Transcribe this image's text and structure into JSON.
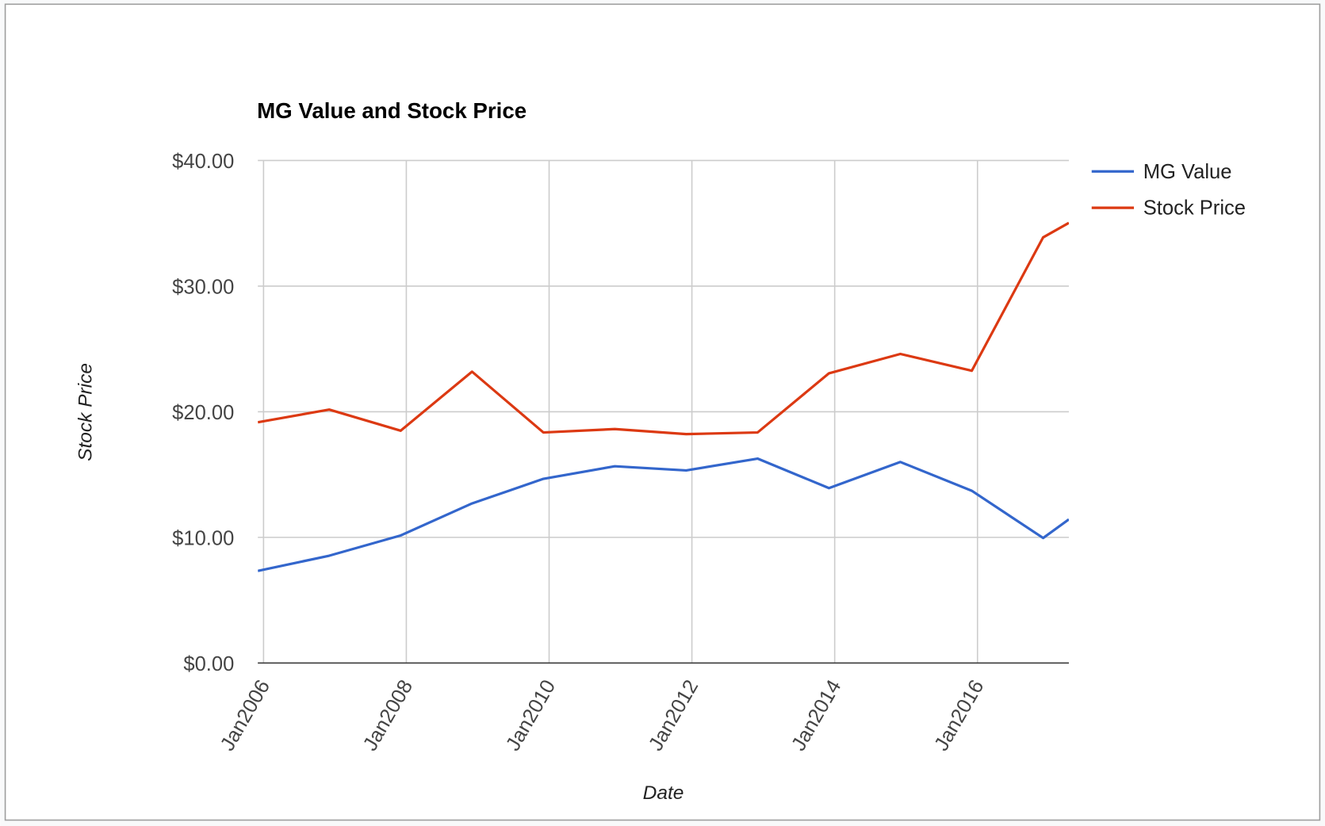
{
  "chart_data": {
    "type": "line",
    "title": "MG Value and Stock Price",
    "xlabel": "Date",
    "ylabel": "Stock Price",
    "x": [
      2005.92,
      2006.92,
      2007.92,
      2008.92,
      2009.92,
      2010.92,
      2011.92,
      2012.92,
      2013.92,
      2014.92,
      2015.92,
      2016.92,
      2017.28
    ],
    "series": [
      {
        "name": "MG Value",
        "color": "#3366cc",
        "values": [
          7.33,
          8.54,
          10.15,
          12.7,
          14.66,
          15.66,
          15.33,
          16.27,
          13.92,
          16.0,
          13.71,
          9.95,
          11.43
        ]
      },
      {
        "name": "Stock Price",
        "color": "#dc3912",
        "values": [
          19.16,
          20.17,
          18.49,
          23.19,
          18.35,
          18.62,
          18.22,
          18.35,
          23.06,
          24.6,
          23.26,
          33.88,
          35.03
        ]
      }
    ],
    "xlim": [
      2005.92,
      2017.28
    ],
    "xticks": [
      {
        "value": 2006,
        "label": "Jan2006"
      },
      {
        "value": 2008,
        "label": "Jan2008"
      },
      {
        "value": 2010,
        "label": "Jan2010"
      },
      {
        "value": 2012,
        "label": "Jan2012"
      },
      {
        "value": 2014,
        "label": "Jan2014"
      },
      {
        "value": 2016,
        "label": "Jan2016"
      }
    ],
    "ylim": [
      0,
      40
    ],
    "yticks": [
      {
        "value": 0,
        "label": "$0.00"
      },
      {
        "value": 10,
        "label": "$10.00"
      },
      {
        "value": 20,
        "label": "$20.00"
      },
      {
        "value": 30,
        "label": "$30.00"
      },
      {
        "value": 40,
        "label": "$40.00"
      }
    ],
    "grid": true,
    "legend": "right"
  }
}
